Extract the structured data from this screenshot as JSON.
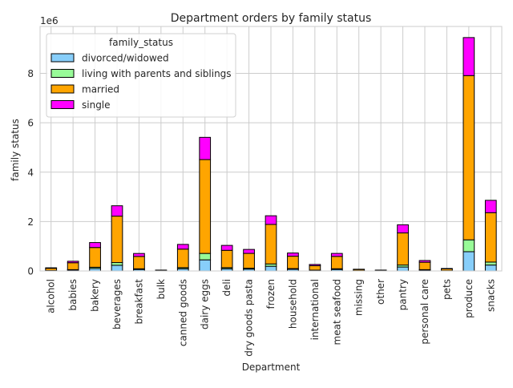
{
  "chart_data": {
    "type": "bar",
    "stacked": true,
    "title": "Department orders by family status",
    "xlabel": "Department",
    "ylabel": "family status",
    "y_scale_label": "1e6",
    "ylim": [
      0,
      9900000
    ],
    "yticks": [
      0,
      2000000,
      4000000,
      6000000,
      8000000
    ],
    "ytick_labels": [
      "0",
      "2",
      "4",
      "6",
      "8"
    ],
    "grid": true,
    "legend_title": "family_status",
    "legend_position": "top-left",
    "categories": [
      "alcohol",
      "babies",
      "bakery",
      "beverages",
      "breakfast",
      "bulk",
      "canned goods",
      "dairy eggs",
      "deli",
      "dry goods pasta",
      "frozen",
      "household",
      "international",
      "meat seafood",
      "missing",
      "other",
      "pantry",
      "personal care",
      "pets",
      "produce",
      "snacks"
    ],
    "series": [
      {
        "name": "divorced/widowed",
        "color": "#87cefa",
        "values": [
          12000,
          35000,
          100000,
          230000,
          60000,
          3000,
          90000,
          450000,
          90000,
          75000,
          190000,
          65000,
          22000,
          60000,
          6000,
          3000,
          160000,
          35000,
          8000,
          780000,
          240000
        ]
      },
      {
        "name": "living with parents and siblings",
        "color": "#98fb98",
        "values": [
          6000,
          18000,
          50000,
          110000,
          28000,
          2000,
          45000,
          260000,
          45000,
          37000,
          95000,
          32000,
          11000,
          30000,
          3000,
          2000,
          80000,
          18000,
          4000,
          480000,
          120000
        ]
      },
      {
        "name": "married",
        "color": "#ffa500",
        "values": [
          90000,
          280000,
          800000,
          1880000,
          500000,
          25000,
          750000,
          3800000,
          700000,
          600000,
          1600000,
          500000,
          180000,
          500000,
          50000,
          25000,
          1300000,
          300000,
          70000,
          6650000,
          2000000
        ]
      },
      {
        "name": "single",
        "color": "#ff00ff",
        "values": [
          20000,
          60000,
          200000,
          420000,
          120000,
          5000,
          190000,
          900000,
          200000,
          160000,
          350000,
          130000,
          50000,
          120000,
          11000,
          5000,
          330000,
          70000,
          18000,
          1540000,
          500000
        ]
      }
    ]
  }
}
